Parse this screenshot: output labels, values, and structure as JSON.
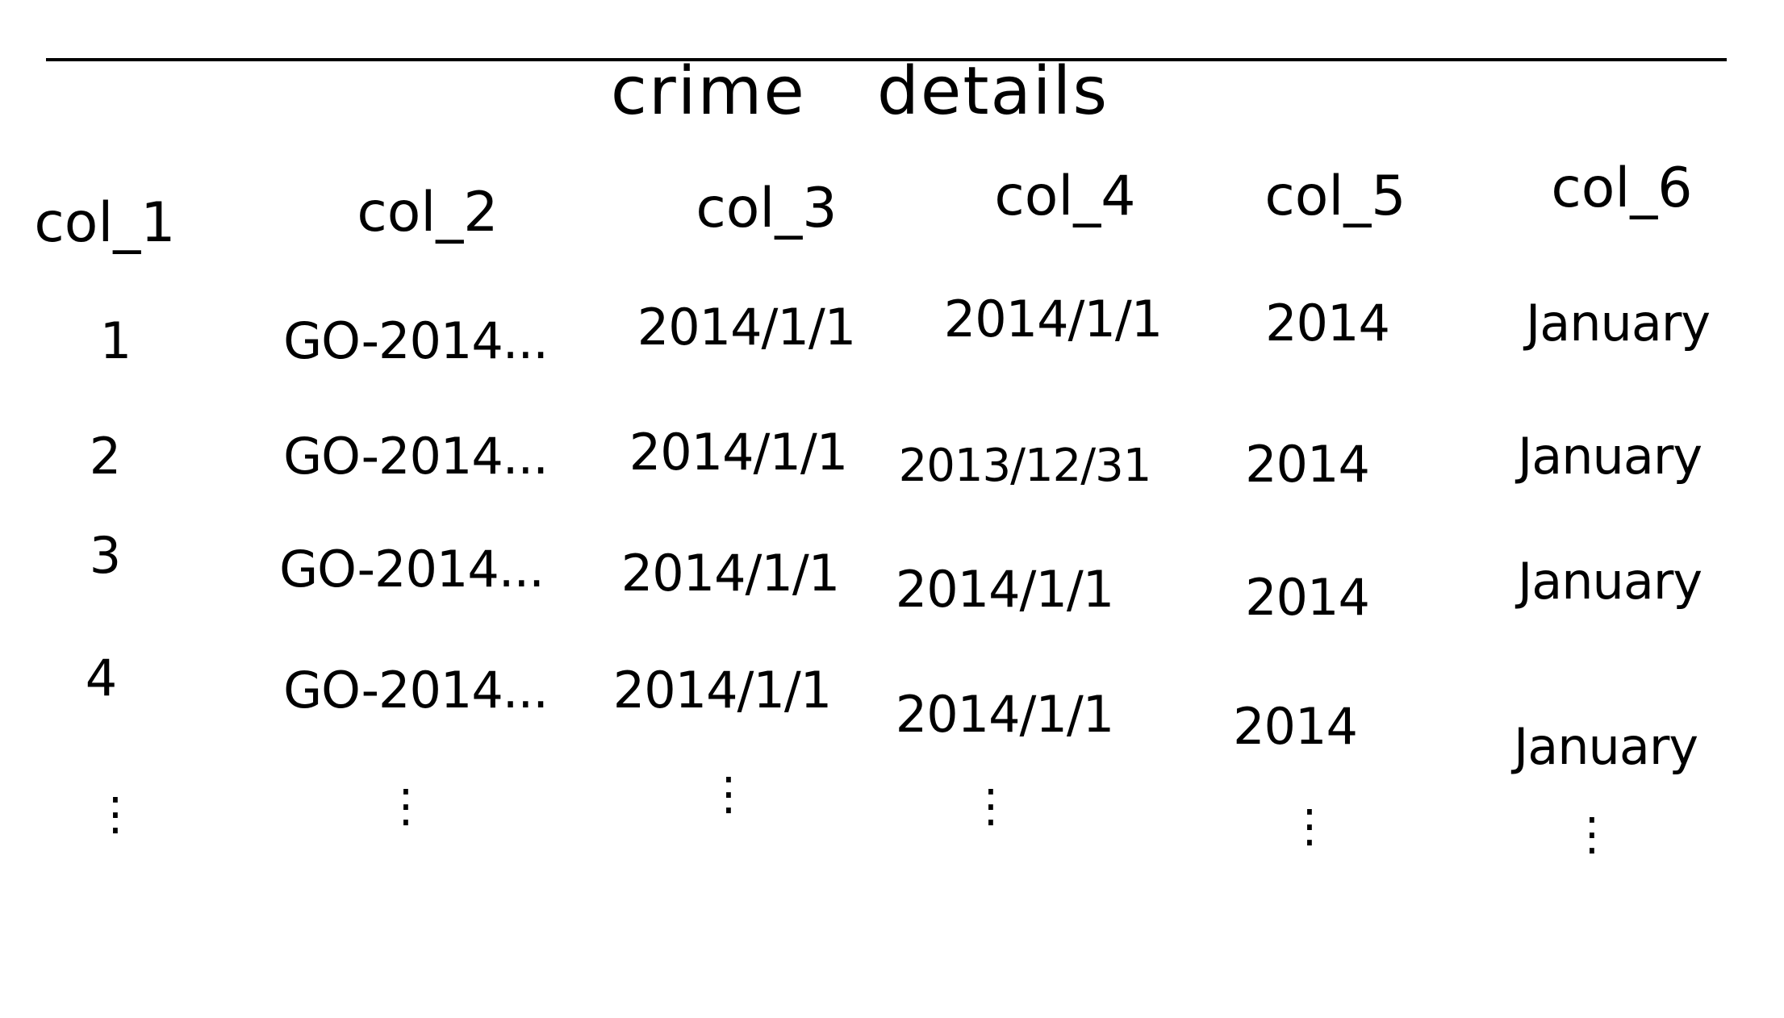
{
  "title": "crime details",
  "table": {
    "columns": [
      "col_1",
      "col_2",
      "col_3",
      "col_4",
      "col_5",
      "col_6"
    ],
    "rows": [
      [
        "1",
        "GO-2014...",
        "2014/1/1",
        "2014/1/1",
        "2014",
        "January"
      ],
      [
        "2",
        "GO-2014...",
        "2014/1/1",
        "2013/12/31",
        "2014",
        "January"
      ],
      [
        "3",
        "GO-2014...",
        "2014/1/1",
        "2014/1/1",
        "2014",
        "January"
      ],
      [
        "4",
        "GO-2014...",
        "2014/1/1",
        "2014/1/1",
        "2014",
        "January"
      ]
    ],
    "continuation": "⋮"
  }
}
